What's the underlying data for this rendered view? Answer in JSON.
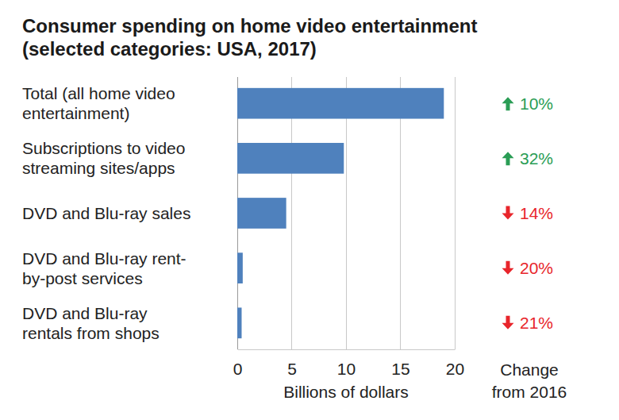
{
  "chart_data": {
    "type": "bar",
    "orientation": "horizontal",
    "title": "Consumer spending on home video entertainment (selected categories: USA, 2017)",
    "categories": [
      "Total (all home video entertainment)",
      "Subscriptions to video streaming sites/apps",
      "DVD and Blu-ray sales",
      "DVD and Blu-ray rent-by-post services",
      "DVD and Blu-ray rentals from shops"
    ],
    "values": [
      19.0,
      9.8,
      4.5,
      0.5,
      0.4
    ],
    "color": "#4f81bd",
    "xlim": [
      0,
      20
    ],
    "xticks": [
      0,
      5,
      10,
      15,
      20
    ],
    "x_label": "Billions of dollars",
    "grid": true,
    "change": {
      "label": "Change from 2016",
      "values": [
        10,
        32,
        -14,
        -20,
        -21
      ],
      "value_labels": [
        "10%",
        "32%",
        "14%",
        "20%",
        "21%"
      ],
      "colors": [
        "#2a9d55",
        "#2a9d55",
        "#e8252b",
        "#e8252b",
        "#e8252b"
      ]
    }
  }
}
